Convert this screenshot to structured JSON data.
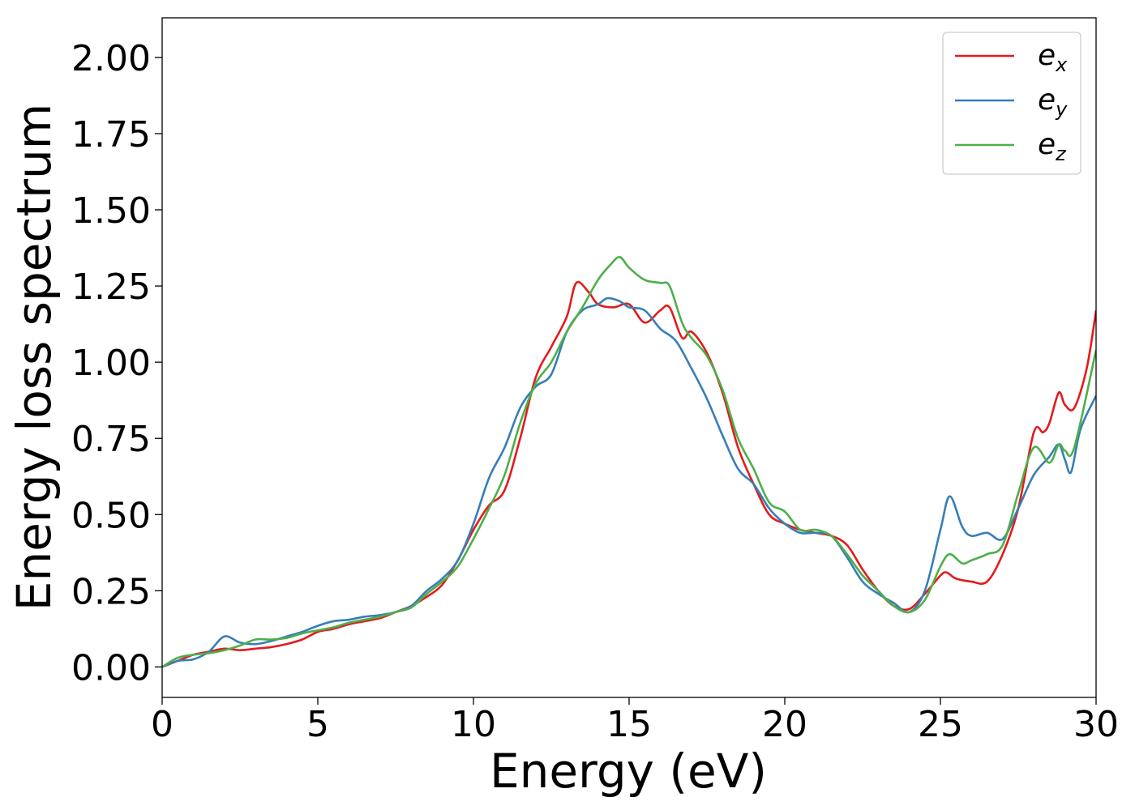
{
  "chart_data": {
    "type": "line",
    "xlabel": "Energy (eV)",
    "ylabel": "Energy loss spectrum",
    "xlim": [
      0,
      30
    ],
    "ylim": [
      -0.1,
      2.13
    ],
    "xticks": [
      0,
      5,
      10,
      15,
      20,
      25,
      30
    ],
    "xtick_labels": [
      "0",
      "5",
      "10",
      "15",
      "20",
      "25",
      "30"
    ],
    "yticks": [
      0.0,
      0.25,
      0.5,
      0.75,
      1.0,
      1.25,
      1.5,
      1.75,
      2.0
    ],
    "ytick_labels": [
      "0.00",
      "0.25",
      "0.50",
      "0.75",
      "1.00",
      "1.25",
      "1.50",
      "1.75",
      "2.00"
    ],
    "grid": false,
    "legend_position": "top-right",
    "series": [
      {
        "name": "e",
        "subscript": "x",
        "color": "#e41a1c",
        "points": [
          [
            0,
            0
          ],
          [
            0.5,
            0.02
          ],
          [
            1,
            0.04
          ],
          [
            1.5,
            0.05
          ],
          [
            2,
            0.06
          ],
          [
            2.5,
            0.055
          ],
          [
            3,
            0.06
          ],
          [
            3.5,
            0.065
          ],
          [
            4,
            0.075
          ],
          [
            4.5,
            0.09
          ],
          [
            5,
            0.115
          ],
          [
            5.5,
            0.125
          ],
          [
            6,
            0.14
          ],
          [
            6.5,
            0.15
          ],
          [
            7,
            0.16
          ],
          [
            7.5,
            0.18
          ],
          [
            8,
            0.2
          ],
          [
            8.5,
            0.23
          ],
          [
            9,
            0.27
          ],
          [
            9.5,
            0.35
          ],
          [
            10,
            0.45
          ],
          [
            10.5,
            0.53
          ],
          [
            11,
            0.58
          ],
          [
            11.5,
            0.75
          ],
          [
            12,
            0.95
          ],
          [
            12.5,
            1.05
          ],
          [
            13,
            1.15
          ],
          [
            13.3,
            1.26
          ],
          [
            13.7,
            1.23
          ],
          [
            14,
            1.19
          ],
          [
            14.5,
            1.18
          ],
          [
            15,
            1.19
          ],
          [
            15.5,
            1.13
          ],
          [
            16,
            1.17
          ],
          [
            16.3,
            1.18
          ],
          [
            16.7,
            1.08
          ],
          [
            17,
            1.1
          ],
          [
            17.5,
            1.03
          ],
          [
            18,
            0.9
          ],
          [
            18.5,
            0.72
          ],
          [
            19,
            0.6
          ],
          [
            19.5,
            0.5
          ],
          [
            20,
            0.47
          ],
          [
            20.5,
            0.45
          ],
          [
            21,
            0.44
          ],
          [
            21.5,
            0.43
          ],
          [
            22,
            0.4
          ],
          [
            22.5,
            0.32
          ],
          [
            23,
            0.25
          ],
          [
            23.5,
            0.2
          ],
          [
            24,
            0.19
          ],
          [
            24.5,
            0.24
          ],
          [
            25,
            0.3
          ],
          [
            25.2,
            0.31
          ],
          [
            25.5,
            0.29
          ],
          [
            26,
            0.28
          ],
          [
            26.5,
            0.28
          ],
          [
            27,
            0.37
          ],
          [
            27.5,
            0.52
          ],
          [
            28,
            0.77
          ],
          [
            28.3,
            0.77
          ],
          [
            28.5,
            0.8
          ],
          [
            28.8,
            0.9
          ],
          [
            29,
            0.86
          ],
          [
            29.3,
            0.85
          ],
          [
            29.7,
            0.98
          ],
          [
            30,
            1.17
          ]
        ]
      },
      {
        "name": "e",
        "subscript": "y",
        "color": "#377eb8",
        "points": [
          [
            0,
            0
          ],
          [
            0.5,
            0.02
          ],
          [
            1,
            0.025
          ],
          [
            1.5,
            0.05
          ],
          [
            2,
            0.1
          ],
          [
            2.5,
            0.08
          ],
          [
            3,
            0.075
          ],
          [
            3.5,
            0.085
          ],
          [
            4,
            0.1
          ],
          [
            4.5,
            0.115
          ],
          [
            5,
            0.135
          ],
          [
            5.5,
            0.15
          ],
          [
            6,
            0.155
          ],
          [
            6.5,
            0.165
          ],
          [
            7,
            0.17
          ],
          [
            7.5,
            0.18
          ],
          [
            8,
            0.2
          ],
          [
            8.5,
            0.25
          ],
          [
            9,
            0.29
          ],
          [
            9.5,
            0.35
          ],
          [
            10,
            0.47
          ],
          [
            10.5,
            0.62
          ],
          [
            11,
            0.72
          ],
          [
            11.5,
            0.85
          ],
          [
            12,
            0.92
          ],
          [
            12.5,
            0.96
          ],
          [
            13,
            1.1
          ],
          [
            13.5,
            1.17
          ],
          [
            14,
            1.19
          ],
          [
            14.3,
            1.21
          ],
          [
            14.7,
            1.2
          ],
          [
            15,
            1.18
          ],
          [
            15.5,
            1.17
          ],
          [
            16,
            1.11
          ],
          [
            16.5,
            1.07
          ],
          [
            17,
            0.98
          ],
          [
            17.5,
            0.88
          ],
          [
            18,
            0.76
          ],
          [
            18.5,
            0.65
          ],
          [
            19,
            0.6
          ],
          [
            19.5,
            0.52
          ],
          [
            20,
            0.47
          ],
          [
            20.5,
            0.44
          ],
          [
            21,
            0.44
          ],
          [
            21.5,
            0.43
          ],
          [
            22,
            0.36
          ],
          [
            22.5,
            0.28
          ],
          [
            23,
            0.24
          ],
          [
            23.5,
            0.21
          ],
          [
            24,
            0.18
          ],
          [
            24.5,
            0.25
          ],
          [
            25,
            0.45
          ],
          [
            25.3,
            0.56
          ],
          [
            25.7,
            0.46
          ],
          [
            26,
            0.43
          ],
          [
            26.5,
            0.44
          ],
          [
            27,
            0.42
          ],
          [
            27.5,
            0.52
          ],
          [
            28,
            0.63
          ],
          [
            28.5,
            0.69
          ],
          [
            28.8,
            0.73
          ],
          [
            29,
            0.68
          ],
          [
            29.2,
            0.64
          ],
          [
            29.5,
            0.78
          ],
          [
            30,
            0.89
          ]
        ]
      },
      {
        "name": "e",
        "subscript": "z",
        "color": "#4daf4a",
        "points": [
          [
            0,
            0
          ],
          [
            0.5,
            0.03
          ],
          [
            1,
            0.04
          ],
          [
            1.5,
            0.045
          ],
          [
            2,
            0.055
          ],
          [
            2.5,
            0.07
          ],
          [
            3,
            0.09
          ],
          [
            3.5,
            0.09
          ],
          [
            4,
            0.095
          ],
          [
            4.5,
            0.11
          ],
          [
            5,
            0.12
          ],
          [
            5.5,
            0.13
          ],
          [
            6,
            0.145
          ],
          [
            6.5,
            0.155
          ],
          [
            7,
            0.165
          ],
          [
            7.5,
            0.18
          ],
          [
            8,
            0.195
          ],
          [
            8.5,
            0.24
          ],
          [
            9,
            0.28
          ],
          [
            9.5,
            0.33
          ],
          [
            10,
            0.42
          ],
          [
            10.5,
            0.52
          ],
          [
            11,
            0.63
          ],
          [
            11.5,
            0.8
          ],
          [
            12,
            0.93
          ],
          [
            12.5,
            1.0
          ],
          [
            13,
            1.1
          ],
          [
            13.5,
            1.18
          ],
          [
            14,
            1.27
          ],
          [
            14.4,
            1.32
          ],
          [
            14.7,
            1.345
          ],
          [
            15,
            1.31
          ],
          [
            15.5,
            1.27
          ],
          [
            16,
            1.26
          ],
          [
            16.3,
            1.25
          ],
          [
            16.7,
            1.13
          ],
          [
            17,
            1.08
          ],
          [
            17.5,
            1.02
          ],
          [
            18,
            0.91
          ],
          [
            18.5,
            0.75
          ],
          [
            19,
            0.65
          ],
          [
            19.5,
            0.54
          ],
          [
            20,
            0.51
          ],
          [
            20.5,
            0.45
          ],
          [
            21,
            0.45
          ],
          [
            21.5,
            0.43
          ],
          [
            22,
            0.37
          ],
          [
            22.5,
            0.3
          ],
          [
            23,
            0.25
          ],
          [
            23.5,
            0.2
          ],
          [
            24,
            0.18
          ],
          [
            24.5,
            0.22
          ],
          [
            25,
            0.33
          ],
          [
            25.3,
            0.37
          ],
          [
            25.7,
            0.34
          ],
          [
            26,
            0.35
          ],
          [
            26.5,
            0.37
          ],
          [
            27,
            0.4
          ],
          [
            27.5,
            0.57
          ],
          [
            28,
            0.72
          ],
          [
            28.5,
            0.67
          ],
          [
            28.8,
            0.73
          ],
          [
            29,
            0.71
          ],
          [
            29.3,
            0.72
          ],
          [
            30,
            1.04
          ]
        ]
      }
    ]
  }
}
